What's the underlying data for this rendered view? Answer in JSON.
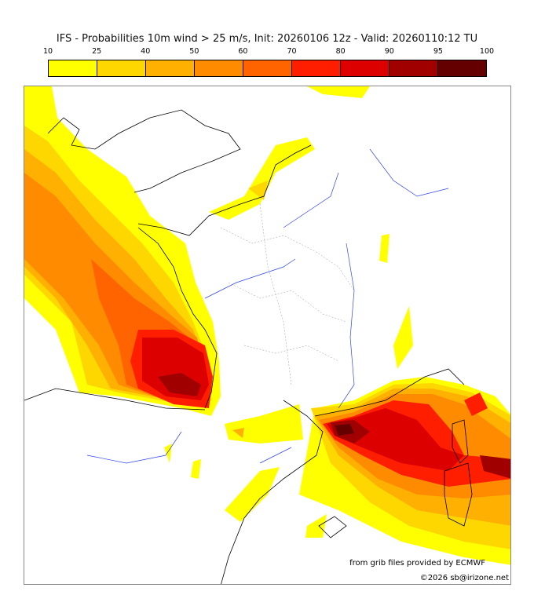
{
  "title": "IFS - Probabilities 10m wind > 25 m/s, Init: 20260106 12z - Valid: 20260110:12 TU",
  "colorbar": {
    "ticks": [
      "10",
      "25",
      "40",
      "50",
      "60",
      "70",
      "80",
      "90",
      "95",
      "100"
    ],
    "colors": [
      "#ffff00",
      "#ffd700",
      "#ffb000",
      "#ff8c00",
      "#ff6400",
      "#ff1e00",
      "#dc0000",
      "#a00000",
      "#640000"
    ]
  },
  "credits": {
    "source": "from grib files provided by ECMWF",
    "copyright": "©2026 sb@irizone.net"
  }
}
